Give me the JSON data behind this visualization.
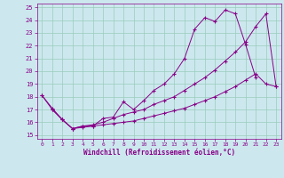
{
  "xlabel": "Windchill (Refroidissement éolien,°C)",
  "background_color": "#cce8ee",
  "grid_color": "#99ccbb",
  "line_color": "#880088",
  "xlim": [
    -0.5,
    23.5
  ],
  "ylim": [
    14.7,
    25.3
  ],
  "yticks": [
    15,
    16,
    17,
    18,
    19,
    20,
    21,
    22,
    23,
    24,
    25
  ],
  "xticks": [
    0,
    1,
    2,
    3,
    4,
    5,
    6,
    7,
    8,
    9,
    10,
    11,
    12,
    13,
    14,
    15,
    16,
    17,
    18,
    19,
    20,
    21,
    22,
    23
  ],
  "line1_x": [
    0,
    1,
    2,
    3,
    4,
    5,
    6,
    7,
    8,
    9,
    10,
    11,
    12,
    13,
    14,
    15,
    16,
    17,
    18,
    19,
    20,
    21
  ],
  "line1_y": [
    18.1,
    17.0,
    16.2,
    15.5,
    15.7,
    15.7,
    16.3,
    16.4,
    17.6,
    17.0,
    17.7,
    18.5,
    19.0,
    19.8,
    21.0,
    23.3,
    24.2,
    23.9,
    24.8,
    24.5,
    22.1,
    19.5
  ],
  "line2_x": [
    0,
    1,
    2,
    3,
    4,
    5,
    6,
    7,
    8,
    9,
    10,
    11,
    12,
    13,
    14,
    15,
    16,
    17,
    18,
    19,
    20,
    21,
    22,
    23
  ],
  "line2_y": [
    18.1,
    17.1,
    16.2,
    15.5,
    15.7,
    15.8,
    16.0,
    16.3,
    16.6,
    16.8,
    17.0,
    17.4,
    17.7,
    18.0,
    18.5,
    19.0,
    19.5,
    20.1,
    20.8,
    21.5,
    22.3,
    23.5,
    24.5,
    18.8
  ],
  "line3_x": [
    1,
    2,
    3,
    4,
    5,
    6,
    7,
    8,
    9,
    10,
    11,
    12,
    13,
    14,
    15,
    16,
    17,
    18,
    19,
    20,
    21,
    22,
    23
  ],
  "line3_y": [
    17.0,
    16.2,
    15.5,
    15.6,
    15.7,
    15.8,
    15.9,
    16.0,
    16.1,
    16.3,
    16.5,
    16.7,
    16.9,
    17.1,
    17.4,
    17.7,
    18.0,
    18.4,
    18.8,
    19.3,
    19.8,
    19.0,
    18.8
  ]
}
